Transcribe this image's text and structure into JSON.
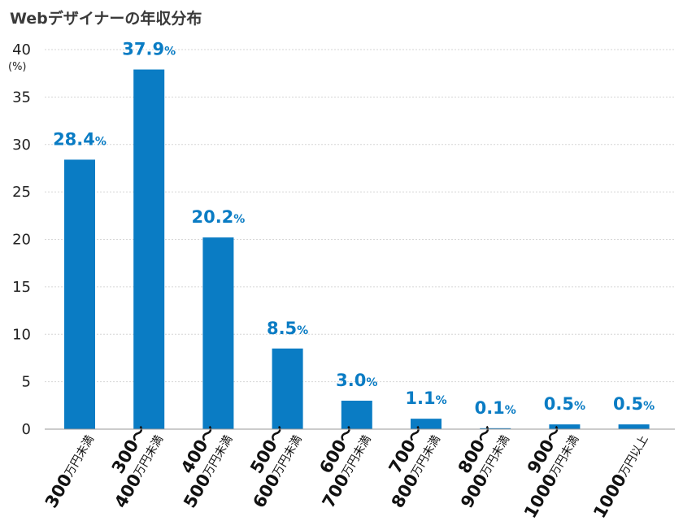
{
  "chart_data": {
    "type": "bar",
    "title": "Webデザイナーの年収分布",
    "y_unit_label": "(%)",
    "value_suffix": "%",
    "ylim": [
      0,
      40
    ],
    "yticks": [
      0,
      5,
      10,
      15,
      20,
      25,
      30,
      35,
      40
    ],
    "grid": true,
    "categories": [
      {
        "lines": [
          {
            "main": "300",
            "suffix": "万円未満"
          }
        ]
      },
      {
        "lines": [
          {
            "main": "300〜",
            "suffix": ""
          },
          {
            "main": "400",
            "suffix": "万円未満"
          }
        ]
      },
      {
        "lines": [
          {
            "main": "400〜",
            "suffix": ""
          },
          {
            "main": "500",
            "suffix": "万円未満"
          }
        ]
      },
      {
        "lines": [
          {
            "main": "500〜",
            "suffix": ""
          },
          {
            "main": "600",
            "suffix": "万円未満"
          }
        ]
      },
      {
        "lines": [
          {
            "main": "600〜",
            "suffix": ""
          },
          {
            "main": "700",
            "suffix": "万円未満"
          }
        ]
      },
      {
        "lines": [
          {
            "main": "700〜",
            "suffix": ""
          },
          {
            "main": "800",
            "suffix": "万円未満"
          }
        ]
      },
      {
        "lines": [
          {
            "main": "800〜",
            "suffix": ""
          },
          {
            "main": "900",
            "suffix": "万円未満"
          }
        ]
      },
      {
        "lines": [
          {
            "main": "900〜",
            "suffix": ""
          },
          {
            "main": "1000",
            "suffix": "万円未満"
          }
        ]
      },
      {
        "lines": [
          {
            "main": "1000",
            "suffix": "万円以上"
          }
        ]
      }
    ],
    "values": [
      28.4,
      37.9,
      20.2,
      8.5,
      3.0,
      1.1,
      0.1,
      0.5,
      0.5
    ],
    "value_labels": [
      "28.4",
      "37.9",
      "20.2",
      "8.5",
      "3.0",
      "1.1",
      "0.1",
      "0.5",
      "0.5"
    ],
    "colors": {
      "bar": "#0a7cc4",
      "label": "#0a7cc4",
      "grid": "#d6d6d6",
      "text": "#222222",
      "title": "#3a3a3a"
    }
  }
}
